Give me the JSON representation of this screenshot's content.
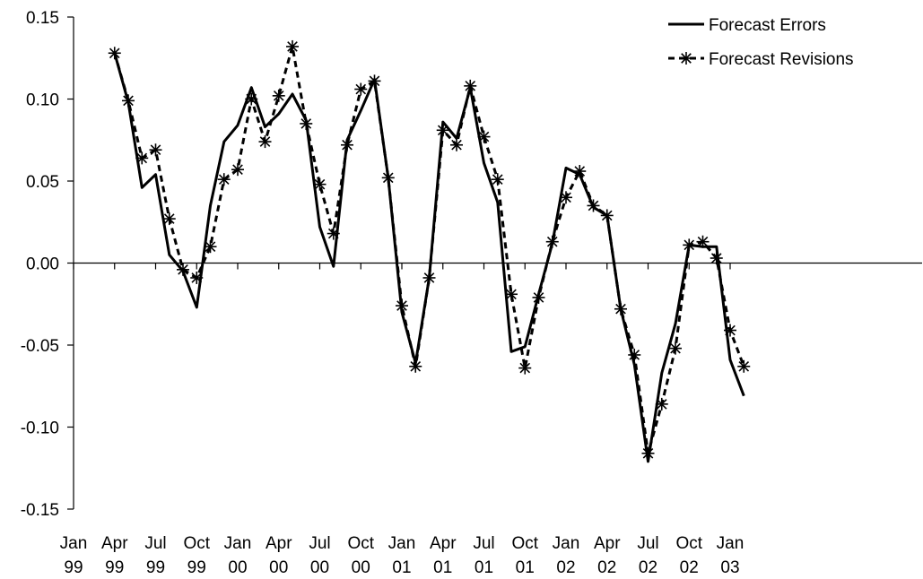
{
  "chart_data": {
    "type": "line",
    "title": "",
    "xlabel": "",
    "ylabel": "",
    "ylim": [
      -0.15,
      0.15
    ],
    "yticks": [
      "0.15",
      "0.10",
      "0.05",
      "0.00",
      "-0.05",
      "-0.10",
      "-0.15"
    ],
    "ytick_values": [
      0.15,
      0.1,
      0.05,
      0.0,
      -0.05,
      -0.1,
      -0.15
    ],
    "xticks": [
      {
        "top": "Jan",
        "bottom": "99"
      },
      {
        "top": "Apr",
        "bottom": "99"
      },
      {
        "top": "Jul",
        "bottom": "99"
      },
      {
        "top": "Oct",
        "bottom": "99"
      },
      {
        "top": "Jan",
        "bottom": "00"
      },
      {
        "top": "Apr",
        "bottom": "00"
      },
      {
        "top": "Jul",
        "bottom": "00"
      },
      {
        "top": "Oct",
        "bottom": "00"
      },
      {
        "top": "Jan",
        "bottom": "01"
      },
      {
        "top": "Apr",
        "bottom": "01"
      },
      {
        "top": "Jul",
        "bottom": "01"
      },
      {
        "top": "Oct",
        "bottom": "01"
      },
      {
        "top": "Jan",
        "bottom": "02"
      },
      {
        "top": "Apr",
        "bottom": "02"
      },
      {
        "top": "Jul",
        "bottom": "02"
      },
      {
        "top": "Oct",
        "bottom": "02"
      },
      {
        "top": "Jan",
        "bottom": "03"
      }
    ],
    "x": [
      "1999-04",
      "1999-05",
      "1999-06",
      "1999-07",
      "1999-08",
      "1999-09",
      "1999-10",
      "1999-11",
      "1999-12",
      "2000-01",
      "2000-02",
      "2000-03",
      "2000-04",
      "2000-05",
      "2000-06",
      "2000-07",
      "2000-08",
      "2000-09",
      "2000-10",
      "2000-11",
      "2000-12",
      "2001-01",
      "2001-02",
      "2001-03",
      "2001-04",
      "2001-05",
      "2001-06",
      "2001-07",
      "2001-08",
      "2001-09",
      "2001-10",
      "2001-11",
      "2001-12",
      "2002-01",
      "2002-02",
      "2002-03",
      "2002-04",
      "2002-05",
      "2002-06",
      "2002-07",
      "2002-08",
      "2002-09",
      "2002-10",
      "2002-11",
      "2002-12",
      "2003-01",
      "2003-02"
    ],
    "series": [
      {
        "name": "Forecast Errors",
        "style": "solid",
        "color": "#000000",
        "values": [
          0.128,
          0.098,
          0.046,
          0.054,
          0.005,
          -0.005,
          -0.027,
          0.035,
          0.074,
          0.084,
          0.107,
          0.083,
          0.091,
          0.103,
          0.087,
          0.022,
          -0.002,
          0.075,
          0.093,
          0.112,
          0.052,
          -0.03,
          -0.061,
          -0.009,
          0.086,
          0.076,
          0.107,
          0.061,
          0.037,
          -0.054,
          -0.051,
          -0.019,
          0.012,
          0.058,
          0.054,
          0.034,
          0.029,
          -0.028,
          -0.062,
          -0.121,
          -0.067,
          -0.037,
          0.011,
          0.01,
          0.01,
          -0.059,
          -0.081
        ]
      },
      {
        "name": "Forecast Revisions",
        "style": "dashed-star",
        "color": "#000000",
        "values": [
          0.128,
          0.099,
          0.064,
          0.069,
          0.027,
          -0.004,
          -0.009,
          0.01,
          0.051,
          0.057,
          0.1,
          0.074,
          0.102,
          0.132,
          0.085,
          0.048,
          0.018,
          0.072,
          0.106,
          0.111,
          0.052,
          -0.026,
          -0.063,
          -0.009,
          0.081,
          0.072,
          0.108,
          0.077,
          0.051,
          -0.019,
          -0.064,
          -0.021,
          0.013,
          0.04,
          0.056,
          0.035,
          0.029,
          -0.028,
          -0.056,
          -0.116,
          -0.086,
          -0.052,
          0.011,
          0.013,
          0.003,
          -0.041,
          -0.063
        ]
      }
    ],
    "grid": false,
    "legend_position": "top-right"
  }
}
